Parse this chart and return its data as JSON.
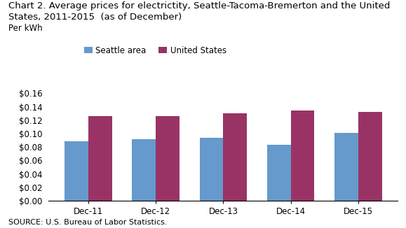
{
  "title_line1": "Chart 2. Average prices for electrictity, Seattle-Tacoma-Bremerton and the United",
  "title_line2": "States, 2011-2015  (as of December)",
  "ylabel": "Per kWh",
  "source": "SOURCE: U.S. Bureau of Labor Statistics.",
  "categories": [
    "Dec-11",
    "Dec-12",
    "Dec-13",
    "Dec-14",
    "Dec-15"
  ],
  "seattle_values": [
    0.089,
    0.092,
    0.094,
    0.083,
    0.101
  ],
  "us_values": [
    0.126,
    0.126,
    0.13,
    0.134,
    0.132
  ],
  "seattle_color": "#6699CC",
  "us_color": "#993366",
  "seattle_label": "Seattle area",
  "us_label": "United States",
  "ylim": [
    0,
    0.17
  ],
  "yticks": [
    0.0,
    0.02,
    0.04,
    0.06,
    0.08,
    0.1,
    0.12,
    0.14,
    0.16
  ],
  "background_color": "#ffffff",
  "bar_width": 0.35,
  "title_fontsize": 9.5,
  "ylabel_fontsize": 8.5,
  "tick_fontsize": 8.5,
  "legend_fontsize": 8.5,
  "source_fontsize": 8
}
